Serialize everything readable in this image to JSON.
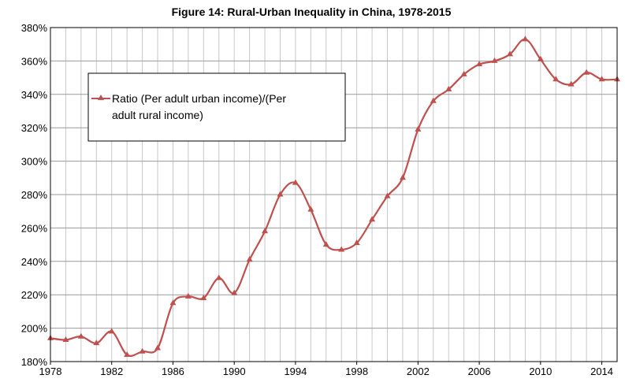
{
  "chart_data": {
    "type": "line",
    "title": "Figure 14: Rural-Urban Inequality in China, 1978-2015",
    "xlabel": "",
    "ylabel": "",
    "xlim": [
      1978,
      2015
    ],
    "ylim": [
      180,
      380
    ],
    "y_ticks": [
      180,
      200,
      220,
      240,
      260,
      280,
      300,
      320,
      340,
      360,
      380
    ],
    "y_tick_labels": [
      "180%",
      "200%",
      "220%",
      "240%",
      "260%",
      "280%",
      "300%",
      "320%",
      "340%",
      "360%",
      "380%"
    ],
    "x_ticks": [
      1978,
      1982,
      1986,
      1990,
      1994,
      1998,
      2002,
      2006,
      2010,
      2014
    ],
    "x_tick_labels": [
      "1978",
      "1982",
      "1986",
      "1990",
      "1994",
      "1998",
      "2002",
      "2006",
      "2010",
      "2014"
    ],
    "grid": "vertical-yearly-and-horizontal",
    "legend_position": "top-left",
    "series": [
      {
        "name": "Ratio (Per adult urban income)/(Per adult rural income)",
        "legend_lines": [
          "Ratio (Per adult urban income)/(Per",
          "adult rural income)"
        ],
        "color": "#C0504D",
        "marker": "triangle",
        "x": [
          1978,
          1979,
          1980,
          1981,
          1982,
          1983,
          1984,
          1985,
          1986,
          1987,
          1988,
          1989,
          1990,
          1991,
          1992,
          1993,
          1994,
          1995,
          1996,
          1997,
          1998,
          1999,
          2000,
          2001,
          2002,
          2003,
          2004,
          2005,
          2006,
          2007,
          2008,
          2009,
          2010,
          2011,
          2012,
          2013,
          2014,
          2015
        ],
        "values": [
          194,
          193,
          195,
          191,
          198,
          184,
          186,
          188,
          215,
          219,
          218,
          230,
          221,
          241,
          258,
          280,
          287,
          271,
          250,
          247,
          251,
          265,
          279,
          290,
          319,
          336,
          343,
          352,
          358,
          360,
          364,
          373,
          361,
          349,
          346,
          353,
          349,
          349
        ]
      }
    ]
  }
}
